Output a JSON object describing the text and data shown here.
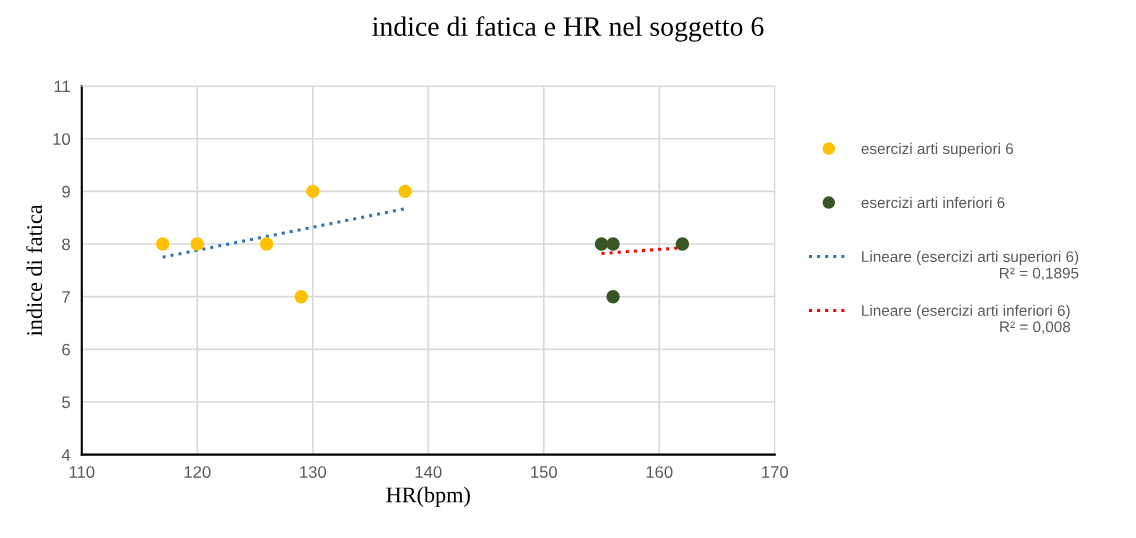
{
  "chart_data": {
    "type": "scatter",
    "title": "indice di fatica e HR nel soggetto 6",
    "xlabel": "HR(bpm)",
    "ylabel": "indice di fatica",
    "xlim": [
      110,
      170
    ],
    "xticks": [
      110,
      120,
      130,
      140,
      150,
      160,
      170
    ],
    "ylim": [
      4,
      11
    ],
    "yticks": [
      4,
      5,
      6,
      7,
      8,
      9,
      10,
      11
    ],
    "grid": true,
    "legend": "right",
    "marker": "circle",
    "series": [
      {
        "name": "esercizi arti superiori 6",
        "color": "#ffc000",
        "x": [
          117,
          120,
          126,
          129,
          130,
          138
        ],
        "values": [
          8,
          8,
          8,
          7,
          9,
          9
        ]
      },
      {
        "name": "esercizi arti inferiori 6",
        "color": "#375623",
        "x": [
          155,
          156,
          156,
          162
        ],
        "values": [
          8,
          8,
          7,
          8
        ]
      },
      {
        "name": "Lineare (esercizi arti superiori 6)",
        "type": "line",
        "line_style": "dotted",
        "marker": "none",
        "color": "#2e75b6",
        "x": [
          117,
          138
        ],
        "values": [
          7.75,
          8.67
        ]
      },
      {
        "name": "Lineare (esercizi arti inferiori 6)",
        "type": "line",
        "line_style": "dotted",
        "marker": "none",
        "color": "#ff0000",
        "x": [
          155,
          162
        ],
        "values": [
          7.82,
          7.93
        ]
      }
    ],
    "annotations": [
      "R² = 0,1895",
      "R² = 0,008"
    ]
  }
}
